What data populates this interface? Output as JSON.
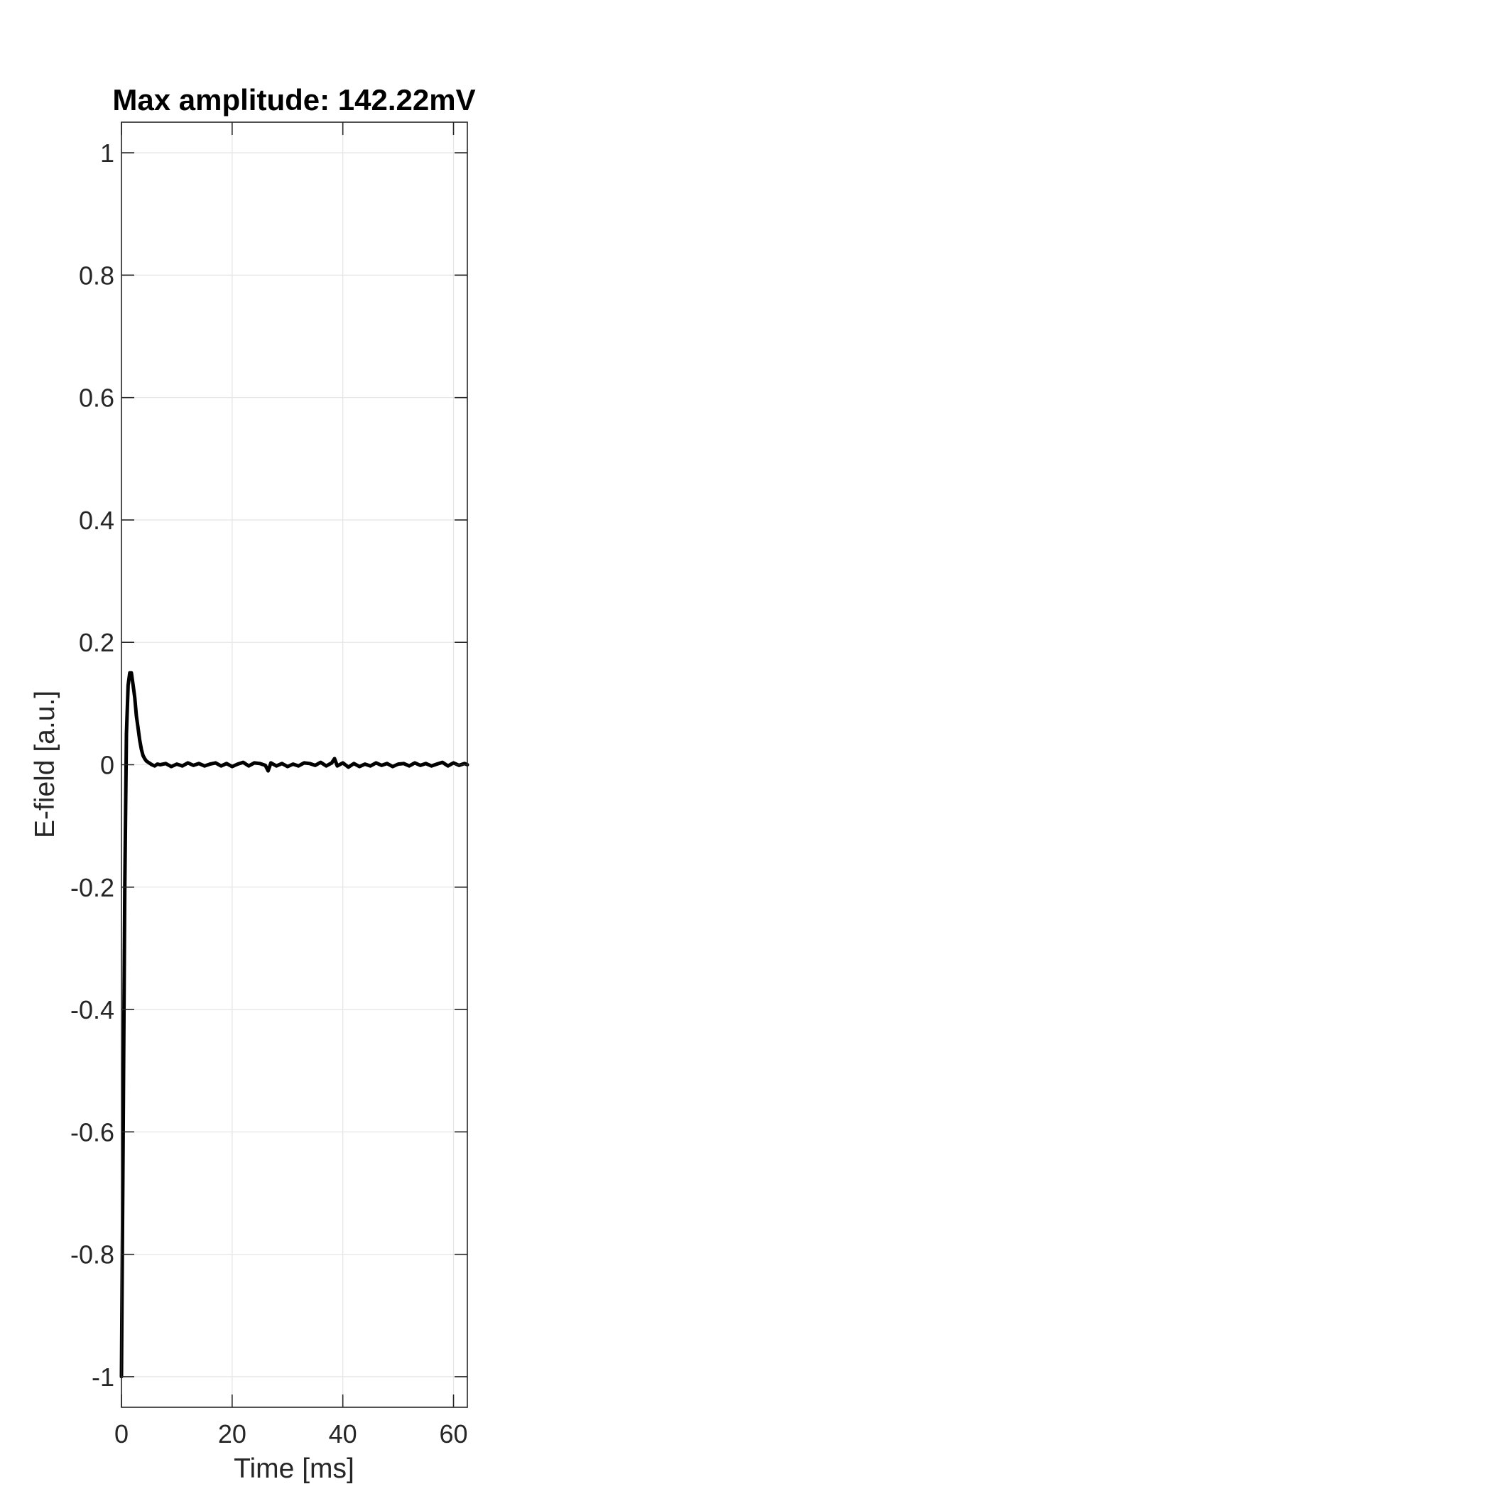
{
  "chart_data": {
    "type": "line",
    "title": "Max amplitude: 142.22mV",
    "xlabel": "Time [ms]",
    "ylabel": "E-field [a.u.]",
    "xlim": [
      0,
      62.5
    ],
    "ylim": [
      -1.05,
      1.05
    ],
    "x_ticks": [
      0,
      20,
      40,
      60
    ],
    "x_tick_labels": [
      "0",
      "20",
      "40",
      "60"
    ],
    "y_ticks": [
      -1,
      -0.8,
      -0.6,
      -0.4,
      -0.2,
      0,
      0.2,
      0.4,
      0.6,
      0.8,
      1
    ],
    "y_tick_labels": [
      "-1",
      "-0.8",
      "-0.6",
      "-0.4",
      "-0.2",
      "0",
      "0.2",
      "0.4",
      "0.6",
      "0.8",
      "1"
    ],
    "grid": true,
    "line_color": "#000000",
    "series": [
      {
        "x": [
          0,
          0.3,
          0.6,
          0.9,
          1.2,
          1.5,
          1.8,
          2.1,
          2.4,
          2.7,
          3.0,
          3.3,
          3.6,
          3.9,
          4.2,
          4.5,
          5.0,
          5.5,
          6.0,
          6.5,
          7.0,
          8,
          9,
          10,
          11,
          12,
          13,
          14,
          15,
          16,
          17,
          18,
          19,
          20,
          21,
          22,
          23,
          24,
          25,
          26,
          26.5,
          27,
          28,
          29,
          30,
          31,
          32,
          33,
          34,
          35,
          36,
          37,
          38,
          38.5,
          39,
          40,
          41,
          42,
          43,
          44,
          45,
          46,
          47,
          48,
          49,
          50,
          51,
          52,
          53,
          54,
          55,
          56,
          57,
          58,
          59,
          60,
          61,
          62,
          62.5
        ],
        "y": [
          -1.0,
          -0.62,
          -0.2,
          0.05,
          0.13,
          0.15,
          0.15,
          0.13,
          0.11,
          0.08,
          0.06,
          0.04,
          0.025,
          0.015,
          0.01,
          0.006,
          0.003,
          0.0,
          -0.002,
          0.001,
          0.0,
          0.002,
          -0.003,
          0.001,
          -0.002,
          0.003,
          -0.001,
          0.002,
          -0.002,
          0.001,
          0.003,
          -0.002,
          0.002,
          -0.003,
          0.001,
          0.004,
          -0.002,
          0.003,
          0.002,
          -0.001,
          -0.01,
          0.003,
          -0.002,
          0.002,
          -0.003,
          0.001,
          -0.002,
          0.003,
          0.002,
          -0.001,
          0.004,
          -0.002,
          0.003,
          0.01,
          -0.002,
          0.003,
          -0.004,
          0.002,
          -0.003,
          0.001,
          -0.002,
          0.003,
          -0.001,
          0.002,
          -0.003,
          0.001,
          0.002,
          -0.002,
          0.003,
          -0.001,
          0.002,
          -0.002,
          0.001,
          0.004,
          -0.002,
          0.003,
          -0.001,
          0.002,
          0.0
        ]
      }
    ]
  }
}
